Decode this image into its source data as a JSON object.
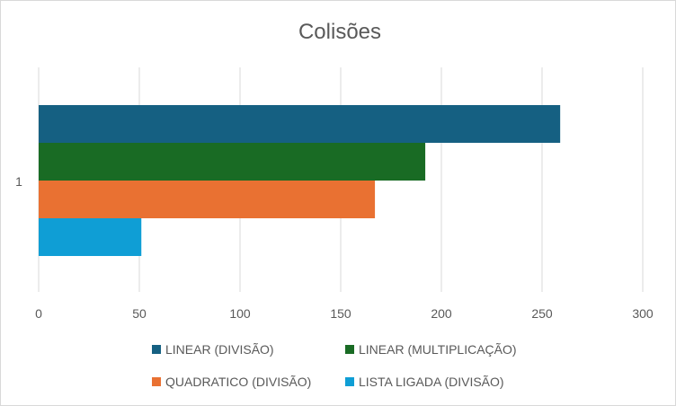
{
  "chart_data": {
    "type": "bar",
    "orientation": "horizontal",
    "title": "Colisões",
    "categories": [
      "1"
    ],
    "xlim": [
      0,
      300
    ],
    "x_ticks": [
      0,
      50,
      100,
      150,
      200,
      250,
      300
    ],
    "grid": true,
    "legend_position": "bottom",
    "series": [
      {
        "name": "LINEAR (DIVISÃO)",
        "values": [
          259
        ],
        "color": "#156082"
      },
      {
        "name": "LINEAR (MULTIPLICAÇÃO)",
        "values": [
          192
        ],
        "color": "#196B24"
      },
      {
        "name": "QUADRATICO (DIVISÃO)",
        "values": [
          167
        ],
        "color": "#E97132"
      },
      {
        "name": "LISTA LIGADA (DIVISÃO)",
        "values": [
          51
        ],
        "color": "#0F9ED5"
      }
    ]
  }
}
